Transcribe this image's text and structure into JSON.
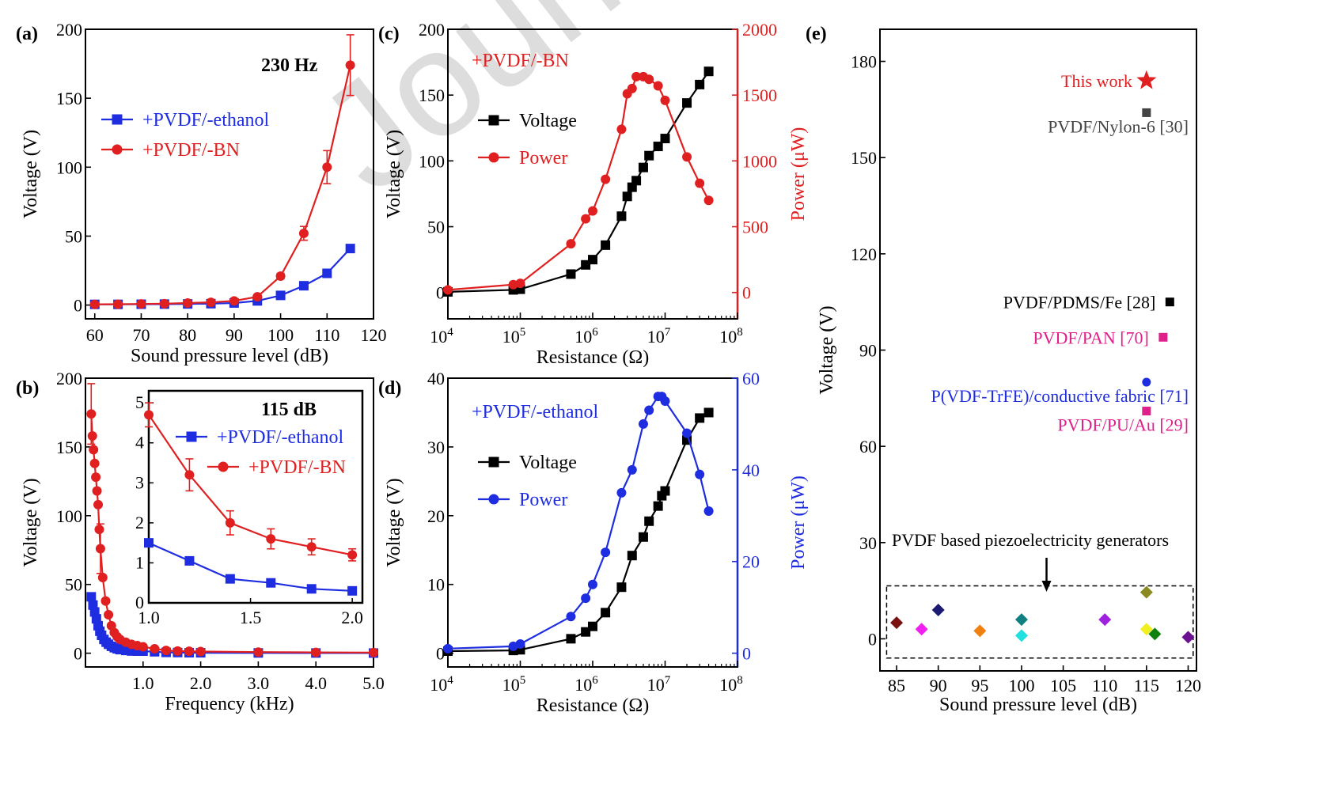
{
  "watermark": "Journal",
  "chart_data": [
    {
      "id": "a",
      "panel_label": "(a)",
      "type": "line",
      "annotation": "230 Hz",
      "xlabel": "Sound pressure level (dB)",
      "ylabel": "Voltage (V)",
      "xlim": [
        58,
        120
      ],
      "ylim": [
        -10,
        200
      ],
      "xticks": [
        60,
        70,
        80,
        90,
        100,
        110,
        120
      ],
      "yticks": [
        0,
        50,
        100,
        150,
        200
      ],
      "legend_position": "top-left",
      "series": [
        {
          "name": "+PVDF/-ethanol",
          "color": "#1f2de0",
          "marker": "square",
          "x": [
            60,
            65,
            70,
            75,
            80,
            85,
            90,
            95,
            100,
            105,
            110,
            115
          ],
          "y": [
            0.5,
            0.5,
            0.6,
            0.7,
            0.8,
            1.0,
            1.5,
            3,
            7,
            14,
            23,
            41
          ]
        },
        {
          "name": "+PVDF/-BN",
          "color": "#e02020",
          "marker": "circle",
          "x": [
            60,
            65,
            70,
            75,
            80,
            85,
            90,
            95,
            100,
            105,
            110,
            115
          ],
          "y": [
            0.5,
            0.6,
            0.8,
            1.0,
            1.5,
            2,
            3,
            6,
            21,
            52,
            100,
            174
          ],
          "err": [
            0,
            0,
            0,
            0,
            0,
            0,
            0,
            0,
            2,
            5,
            12,
            22
          ]
        }
      ]
    },
    {
      "id": "b",
      "panel_label": "(b)",
      "type": "line",
      "xlabel": "Frequency (kHz)",
      "ylabel": "Voltage (V)",
      "xlim": [
        0.0,
        5.0
      ],
      "ylim": [
        -10,
        200
      ],
      "xticks": [
        1.0,
        2.0,
        3.0,
        4.0,
        5.0
      ],
      "yticks": [
        0,
        50,
        100,
        150,
        200
      ],
      "series": [
        {
          "name": "+PVDF/-ethanol",
          "color": "#1f2de0",
          "marker": "square",
          "x": [
            0.1,
            0.13,
            0.16,
            0.19,
            0.22,
            0.25,
            0.28,
            0.32,
            0.36,
            0.4,
            0.45,
            0.5,
            0.55,
            0.6,
            0.7,
            0.8,
            0.9,
            1.0,
            1.2,
            1.4,
            1.6,
            1.8,
            2.0,
            3.0,
            4.0,
            5.0
          ],
          "y": [
            41,
            35,
            30,
            25,
            20,
            16,
            13,
            10,
            8,
            6.5,
            5,
            4,
            3.2,
            2.6,
            2.0,
            1.6,
            1.5,
            1.5,
            1.05,
            0.6,
            0.5,
            0.35,
            0.3,
            0.2,
            0.15,
            0.1
          ]
        },
        {
          "name": "+PVDF/-BN",
          "color": "#e02020",
          "marker": "circle",
          "x": [
            0.1,
            0.12,
            0.14,
            0.16,
            0.18,
            0.2,
            0.22,
            0.24,
            0.26,
            0.3,
            0.35,
            0.4,
            0.45,
            0.5,
            0.55,
            0.6,
            0.7,
            0.8,
            0.9,
            1.0,
            1.2,
            1.4,
            1.6,
            1.8,
            2.0,
            3.0,
            4.0,
            5.0
          ],
          "y": [
            174,
            158,
            148,
            138,
            128,
            118,
            108,
            90,
            76,
            55,
            38,
            28,
            20,
            15,
            12,
            10,
            8,
            6.5,
            5.5,
            4.7,
            3.2,
            2.0,
            1.6,
            1.4,
            1.2,
            0.8,
            0.6,
            0.5
          ],
          "err": [
            22,
            0,
            0,
            0,
            0,
            0,
            0,
            0,
            18,
            0,
            0,
            0,
            0,
            0,
            0,
            0,
            0,
            0,
            0,
            0,
            0,
            0,
            0,
            0,
            0,
            0,
            0,
            0
          ]
        }
      ],
      "inset": {
        "annotation": "115 dB",
        "xlim": [
          1.0,
          2.05
        ],
        "ylim": [
          0,
          5.3
        ],
        "xticks": [
          1.0,
          1.5,
          2.0
        ],
        "yticks": [
          0,
          1,
          2,
          3,
          4,
          5
        ],
        "legend_position": "top-right",
        "series": [
          {
            "name": "+PVDF/-ethanol",
            "color": "#1f2de0",
            "marker": "square",
            "x": [
              1.0,
              1.2,
              1.4,
              1.6,
              1.8,
              2.0
            ],
            "y": [
              1.5,
              1.05,
              0.6,
              0.5,
              0.35,
              0.3
            ]
          },
          {
            "name": "+PVDF/-BN",
            "color": "#e02020",
            "marker": "circle",
            "x": [
              1.0,
              1.2,
              1.4,
              1.6,
              1.8,
              2.0
            ],
            "y": [
              4.7,
              3.2,
              2.0,
              1.6,
              1.4,
              1.2
            ],
            "err": [
              0.3,
              0.4,
              0.3,
              0.25,
              0.2,
              0.15
            ]
          }
        ]
      }
    },
    {
      "id": "c",
      "panel_label": "(c)",
      "type": "line",
      "annotation": "+PVDF/-BN",
      "annotation_color": "#e02020",
      "xlabel": "Resistance (Ω)",
      "ylabel": "Voltage (V)",
      "ylabel_right": "Power (μW)",
      "right_axis_color": "#e02020",
      "xscale": "log",
      "xlim": [
        10000,
        100000000
      ],
      "ylim": [
        -20,
        200
      ],
      "ylim_right": [
        -200,
        2000
      ],
      "xtick_base": "10",
      "xtick_exponents": [
        "4",
        "5",
        "6",
        "7",
        "8"
      ],
      "yticks": [
        0,
        50,
        100,
        150,
        200
      ],
      "yticks_right": [
        0,
        500,
        1000,
        1500,
        2000
      ],
      "legend_position": "top-left",
      "series": [
        {
          "name": "Voltage",
          "axis": "left",
          "color": "#000000",
          "marker": "square",
          "x": [
            10000,
            80000,
            100000,
            500000,
            800000,
            1000000,
            1500000,
            2500000,
            3000000,
            3500000,
            4000000,
            5000000,
            6000000,
            8000000,
            10000000,
            20000000,
            30000000,
            40000000
          ],
          "y": [
            0.5,
            2,
            2.5,
            14,
            21,
            25,
            36,
            58,
            73,
            80,
            85,
            95,
            104,
            111,
            117,
            144,
            158,
            168
          ]
        },
        {
          "name": "Power",
          "axis": "right",
          "color": "#e02020",
          "marker": "circle",
          "x": [
            10000,
            80000,
            100000,
            500000,
            800000,
            1000000,
            1500000,
            2500000,
            3000000,
            3500000,
            4000000,
            5000000,
            6000000,
            8000000,
            10000000,
            20000000,
            30000000,
            40000000
          ],
          "y": [
            20,
            60,
            70,
            370,
            560,
            620,
            860,
            1240,
            1510,
            1550,
            1640,
            1640,
            1620,
            1570,
            1460,
            1030,
            830,
            700
          ]
        }
      ]
    },
    {
      "id": "d",
      "panel_label": "(d)",
      "type": "line",
      "annotation": "+PVDF/-ethanol",
      "annotation_color": "#1f2de0",
      "xlabel": "Resistance (Ω)",
      "ylabel": "Voltage (V)",
      "ylabel_right": "Power (μW)",
      "right_axis_color": "#1f2de0",
      "xscale": "log",
      "xlim": [
        10000,
        100000000
      ],
      "ylim": [
        -2,
        40
      ],
      "ylim_right": [
        -3,
        60
      ],
      "xtick_base": "10",
      "xtick_exponents": [
        "4",
        "5",
        "6",
        "7",
        "8"
      ],
      "yticks": [
        0,
        10,
        20,
        30,
        40
      ],
      "yticks_right": [
        0,
        20,
        40,
        60
      ],
      "legend_position": "top-left",
      "series": [
        {
          "name": "Voltage",
          "axis": "left",
          "color": "#000000",
          "marker": "square",
          "x": [
            10000,
            80000,
            100000,
            500000,
            800000,
            1000000,
            1500000,
            2500000,
            3500000,
            5000000,
            6000000,
            8000000,
            9000000,
            10000000,
            20000000,
            30000000,
            40000000
          ],
          "y": [
            0.3,
            0.4,
            0.5,
            2.1,
            3.1,
            3.9,
            5.9,
            9.6,
            14.2,
            16.9,
            19.2,
            21.4,
            22.9,
            23.6,
            31,
            34.2,
            35
          ]
        },
        {
          "name": "Power",
          "axis": "right",
          "color": "#1f2de0",
          "marker": "circle",
          "x": [
            10000,
            80000,
            100000,
            500000,
            800000,
            1000000,
            1500000,
            2500000,
            3500000,
            5000000,
            6000000,
            8000000,
            9000000,
            10000000,
            20000000,
            30000000,
            40000000
          ],
          "y": [
            1,
            1.5,
            2,
            8,
            12,
            15,
            22,
            35,
            40,
            50,
            53,
            56,
            56,
            55,
            48,
            39,
            31
          ]
        }
      ]
    },
    {
      "id": "e",
      "panel_label": "(e)",
      "type": "scatter",
      "xlabel": "Sound pressure level (dB)",
      "ylabel": "Voltage (V)",
      "xlim": [
        83,
        121
      ],
      "ylim": [
        -10,
        190
      ],
      "xticks": [
        85,
        90,
        95,
        100,
        105,
        110,
        115,
        120
      ],
      "yticks": [
        0,
        30,
        60,
        90,
        120,
        150,
        180
      ],
      "annotation": "PVDF based piezoelectricity generators",
      "points": [
        {
          "label": "This work",
          "x": 115,
          "y": 174,
          "color": "#e02020",
          "marker": "star",
          "label_side": "left"
        },
        {
          "label": "PVDF/Nylon-6 [30]",
          "x": 115,
          "y": 164,
          "color": "#444444",
          "marker": "square",
          "label_side": "below"
        },
        {
          "label": "PVDF/PDMS/Fe [28]",
          "x": 117.8,
          "y": 105,
          "color": "#000000",
          "marker": "square",
          "label_side": "left"
        },
        {
          "label": "PVDF/PAN [70]",
          "x": 117,
          "y": 94,
          "color": "#e0208a",
          "marker": "square",
          "label_side": "left"
        },
        {
          "label": "P(VDF-TrFE)/conductive fabric [71]",
          "x": 115,
          "y": 80,
          "color": "#1f2de0",
          "marker": "circle",
          "label_side": "below"
        },
        {
          "label": "PVDF/PU/Au [29]",
          "x": 115,
          "y": 71,
          "color": "#e0208a",
          "marker": "square",
          "label_side": "below"
        }
      ],
      "cluster": [
        {
          "x": 85,
          "y": 5,
          "color": "#7a1010"
        },
        {
          "x": 88,
          "y": 3,
          "color": "#f020f0"
        },
        {
          "x": 90,
          "y": 9,
          "color": "#1a1a70"
        },
        {
          "x": 95,
          "y": 2.5,
          "color": "#f08010"
        },
        {
          "x": 100,
          "y": 6,
          "color": "#108080"
        },
        {
          "x": 100,
          "y": 1,
          "color": "#20e0e0"
        },
        {
          "x": 110,
          "y": 6,
          "color": "#a020e0"
        },
        {
          "x": 115,
          "y": 14.5,
          "color": "#8a8a20"
        },
        {
          "x": 115,
          "y": 3,
          "color": "#f0f020"
        },
        {
          "x": 116,
          "y": 1.5,
          "color": "#108010"
        },
        {
          "x": 120,
          "y": 0.5,
          "color": "#6a1090"
        }
      ]
    }
  ]
}
